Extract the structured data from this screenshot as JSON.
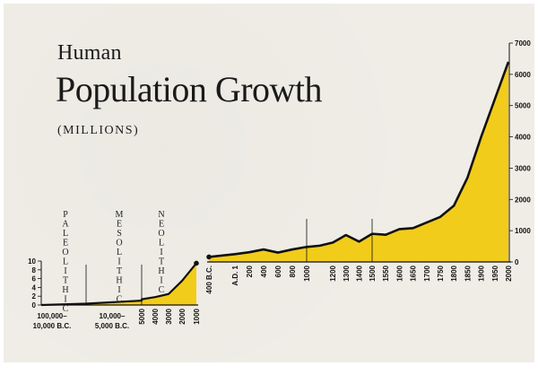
{
  "title_line1": "Human",
  "title_line2": "Population Growth",
  "unit_note": "(MILLIONS)",
  "colors": {
    "fill": "#f2cc1a",
    "line": "#111111",
    "background": "#efede6"
  },
  "chart_data": [
    {
      "type": "area",
      "panel": "prehistoric",
      "title": "",
      "ylabel": "",
      "ylim": [
        0,
        10
      ],
      "y_ticks": [
        0,
        2,
        4,
        6,
        8,
        10
      ],
      "categories": [
        "100,000–10,000 B.C.",
        "10,000–5,000 B.C.",
        "5000",
        "4000",
        "3000",
        "2000",
        "1000"
      ],
      "category_labels": [
        {
          "line1": "100,000–",
          "line2": "10,000 B.C."
        },
        {
          "line1": "10,000–",
          "line2": "5,000 B.C."
        },
        {
          "line1": "5000",
          "line2": ""
        },
        {
          "line1": "4000",
          "line2": ""
        },
        {
          "line1": "3000",
          "line2": ""
        },
        {
          "line1": "2000",
          "line2": ""
        },
        {
          "line1": "1000",
          "line2": ""
        }
      ],
      "values": [
        0.3,
        1.0,
        1.3,
        1.8,
        2.5,
        5.5,
        9.5
      ],
      "eras": [
        {
          "label": "PALEOLITHIC",
          "letters": [
            "P",
            "A",
            "L",
            "E",
            "O",
            "L",
            "I",
            "T",
            "H",
            "I",
            "C"
          ]
        },
        {
          "label": "MESOLITHIC",
          "letters": [
            "M",
            "E",
            "S",
            "O",
            "L",
            "I",
            "T",
            "H",
            "I",
            "C"
          ]
        },
        {
          "label": "NEOLITHIC",
          "letters": [
            "N",
            "E",
            "O",
            "L",
            "I",
            "T",
            "H",
            "I",
            "C"
          ]
        }
      ]
    },
    {
      "type": "area",
      "panel": "historic",
      "title": "",
      "ylabel": "",
      "ylim": [
        0,
        7000
      ],
      "y_ticks": [
        0,
        1000,
        2000,
        3000,
        4000,
        5000,
        6000,
        7000
      ],
      "x_tick_labels": [
        "400 B.C.",
        "A.D. 1",
        "200",
        "400",
        "600",
        "800",
        "1000",
        "1200",
        "1300",
        "1400",
        "1500",
        "1550",
        "1600",
        "1650",
        "1700",
        "1750",
        "1800",
        "1850",
        "1900",
        "1950",
        "2000"
      ],
      "x": [
        -400,
        1,
        200,
        400,
        600,
        800,
        1000,
        1100,
        1200,
        1300,
        1400,
        1500,
        1550,
        1600,
        1650,
        1700,
        1750,
        1800,
        1850,
        1900,
        1950,
        2000
      ],
      "values": [
        160,
        250,
        310,
        400,
        300,
        400,
        480,
        520,
        620,
        860,
        650,
        900,
        870,
        1050,
        1080,
        1260,
        1440,
        1800,
        2700,
        4000,
        5200,
        6400
      ]
    }
  ]
}
